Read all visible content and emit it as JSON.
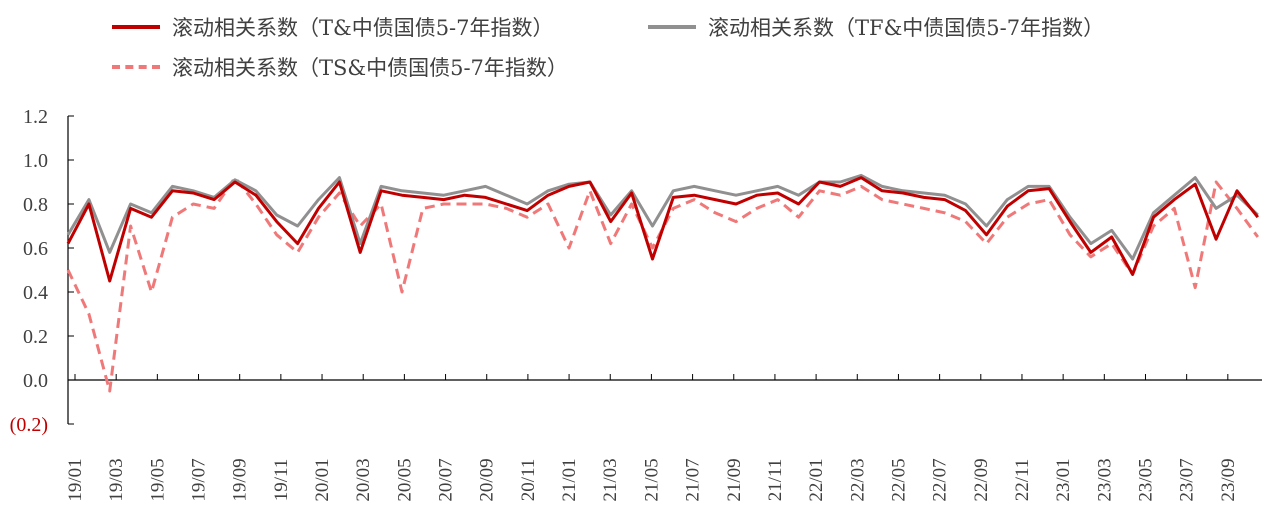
{
  "chart_data": {
    "type": "line",
    "title": "",
    "xlabel": "",
    "ylabel": "",
    "ylim": [
      -0.2,
      1.2
    ],
    "y_ticks": [
      "1.2",
      "1.0",
      "0.8",
      "0.6",
      "0.4",
      "0.2",
      "0.0",
      "(0.2)"
    ],
    "y_tick_values": [
      1.2,
      1.0,
      0.8,
      0.6,
      0.4,
      0.2,
      0.0,
      -0.2
    ],
    "x_tick_labels": [
      "19/01",
      "19/03",
      "19/05",
      "19/07",
      "19/09",
      "19/11",
      "20/01",
      "20/03",
      "20/05",
      "20/07",
      "20/09",
      "20/11",
      "21/01",
      "21/03",
      "21/05",
      "21/07",
      "21/09",
      "21/11",
      "22/01",
      "22/03",
      "22/05",
      "22/07",
      "22/09",
      "22/11",
      "23/01",
      "23/03",
      "23/05",
      "23/07",
      "23/09"
    ],
    "legend_position": "top",
    "grid": false,
    "x": [
      "19/01",
      "19/02",
      "19/03",
      "19/04",
      "19/05",
      "19/06",
      "19/07",
      "19/08",
      "19/09",
      "19/10",
      "19/11",
      "19/12",
      "20/01",
      "20/02",
      "20/03",
      "20/04",
      "20/05",
      "20/06",
      "20/07",
      "20/08",
      "20/09",
      "20/10",
      "20/11",
      "20/12",
      "21/01",
      "21/02",
      "21/03",
      "21/04",
      "21/05",
      "21/06",
      "21/07",
      "21/08",
      "21/09",
      "21/10",
      "21/11",
      "21/12",
      "22/01",
      "22/02",
      "22/03",
      "22/04",
      "22/05",
      "22/06",
      "22/07",
      "22/08",
      "22/09",
      "22/10",
      "22/11",
      "22/12",
      "23/01",
      "23/02",
      "23/03",
      "23/04",
      "23/05",
      "23/06",
      "23/07",
      "23/08",
      "23/09",
      "23/10"
    ],
    "series": [
      {
        "name": "滚动相关系数（T&中债国债5-7年指数）",
        "color": "#c00000",
        "dash": "solid",
        "values": [
          0.62,
          0.8,
          0.45,
          0.78,
          0.74,
          0.86,
          0.85,
          0.82,
          0.9,
          0.84,
          0.72,
          0.62,
          0.78,
          0.9,
          0.58,
          0.86,
          0.84,
          0.83,
          0.82,
          0.84,
          0.83,
          0.8,
          0.77,
          0.84,
          0.88,
          0.9,
          0.72,
          0.85,
          0.55,
          0.83,
          0.84,
          0.82,
          0.8,
          0.84,
          0.85,
          0.8,
          0.9,
          0.88,
          0.92,
          0.86,
          0.85,
          0.83,
          0.82,
          0.77,
          0.66,
          0.79,
          0.86,
          0.87,
          0.72,
          0.58,
          0.65,
          0.48,
          0.74,
          0.82,
          0.89,
          0.64,
          0.86,
          0.74
        ]
      },
      {
        "name": "滚动相关系数（TF&中债国债5-7年指数）",
        "color": "#909090",
        "dash": "solid",
        "values": [
          0.66,
          0.82,
          0.58,
          0.8,
          0.76,
          0.88,
          0.86,
          0.83,
          0.91,
          0.86,
          0.75,
          0.7,
          0.82,
          0.92,
          0.62,
          0.88,
          0.86,
          0.85,
          0.84,
          0.86,
          0.88,
          0.84,
          0.8,
          0.86,
          0.89,
          0.9,
          0.75,
          0.86,
          0.7,
          0.86,
          0.88,
          0.86,
          0.84,
          0.86,
          0.88,
          0.84,
          0.9,
          0.9,
          0.93,
          0.88,
          0.86,
          0.85,
          0.84,
          0.8,
          0.7,
          0.82,
          0.88,
          0.88,
          0.74,
          0.62,
          0.68,
          0.55,
          0.76,
          0.84,
          0.92,
          0.78,
          0.84,
          0.75
        ]
      },
      {
        "name": "滚动相关系数（TS&中债国债5-7年指数）",
        "color": "#f07878",
        "dash": "dashed",
        "values": [
          0.5,
          0.3,
          -0.05,
          0.7,
          0.4,
          0.74,
          0.8,
          0.78,
          0.92,
          0.8,
          0.66,
          0.58,
          0.74,
          0.85,
          0.7,
          0.8,
          0.4,
          0.78,
          0.8,
          0.8,
          0.8,
          0.78,
          0.74,
          0.8,
          0.6,
          0.86,
          0.62,
          0.8,
          0.6,
          0.78,
          0.82,
          0.76,
          0.72,
          0.78,
          0.82,
          0.74,
          0.86,
          0.84,
          0.88,
          0.82,
          0.8,
          0.78,
          0.76,
          0.72,
          0.62,
          0.74,
          0.8,
          0.82,
          0.66,
          0.56,
          0.62,
          0.48,
          0.7,
          0.78,
          0.42,
          0.9,
          0.78,
          0.65
        ]
      }
    ]
  }
}
